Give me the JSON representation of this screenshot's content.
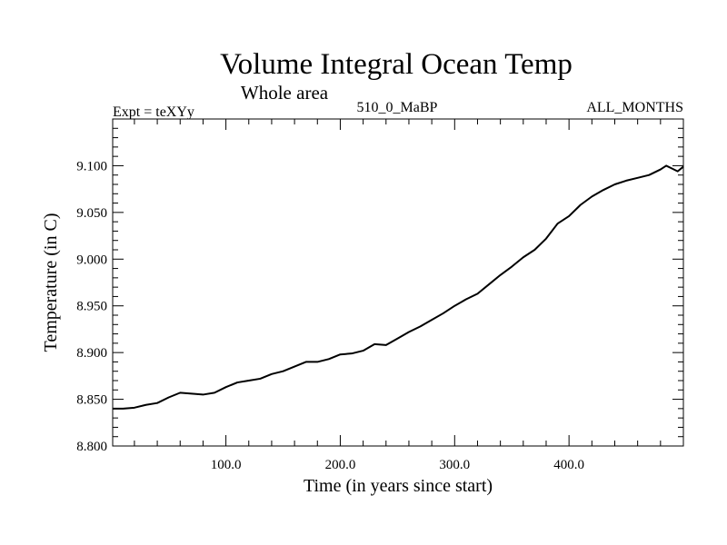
{
  "chart_data": {
    "type": "line",
    "title": "Volume Integral Ocean Temp",
    "subtitle": "Whole area",
    "left_label": "Expt = teXYy",
    "center_label": "510_0_MaBP",
    "right_label": "ALL_MONTHS",
    "xlabel": "Time (in years since start)",
    "ylabel": "Temperature (in C)",
    "xlim": [
      1,
      500
    ],
    "ylim": [
      8.8,
      9.15
    ],
    "xticks": [
      100,
      200,
      300,
      400
    ],
    "xtick_labels": [
      "100.0",
      "200.0",
      "300.0",
      "400.0"
    ],
    "yticks": [
      8.8,
      8.85,
      8.9,
      8.95,
      9.0,
      9.05,
      9.1
    ],
    "ytick_labels": [
      "8.800",
      "8.850",
      "8.900",
      "8.950",
      "9.000",
      "9.050",
      "9.100"
    ],
    "grid": false,
    "series": [
      {
        "color": "#000000",
        "x": [
          1,
          10,
          20,
          30,
          40,
          50,
          60,
          70,
          80,
          90,
          100,
          110,
          120,
          130,
          140,
          150,
          160,
          170,
          180,
          190,
          200,
          210,
          220,
          230,
          240,
          250,
          260,
          270,
          280,
          290,
          300,
          310,
          320,
          330,
          340,
          350,
          360,
          370,
          380,
          390,
          400,
          410,
          420,
          430,
          440,
          450,
          460,
          470,
          480,
          485,
          490,
          495,
          500
        ],
        "y": [
          8.84,
          8.84,
          8.841,
          8.844,
          8.846,
          8.852,
          8.857,
          8.856,
          8.855,
          8.857,
          8.863,
          8.868,
          8.87,
          8.872,
          8.877,
          8.88,
          8.885,
          8.89,
          8.89,
          8.893,
          8.898,
          8.899,
          8.902,
          8.909,
          8.908,
          8.915,
          8.922,
          8.928,
          8.935,
          8.942,
          8.95,
          8.957,
          8.963,
          8.973,
          8.983,
          8.992,
          9.002,
          9.01,
          9.022,
          9.038,
          9.046,
          9.058,
          9.067,
          9.074,
          9.08,
          9.084,
          9.087,
          9.09,
          9.096,
          9.1,
          9.097,
          9.094,
          9.099
        ]
      }
    ]
  }
}
